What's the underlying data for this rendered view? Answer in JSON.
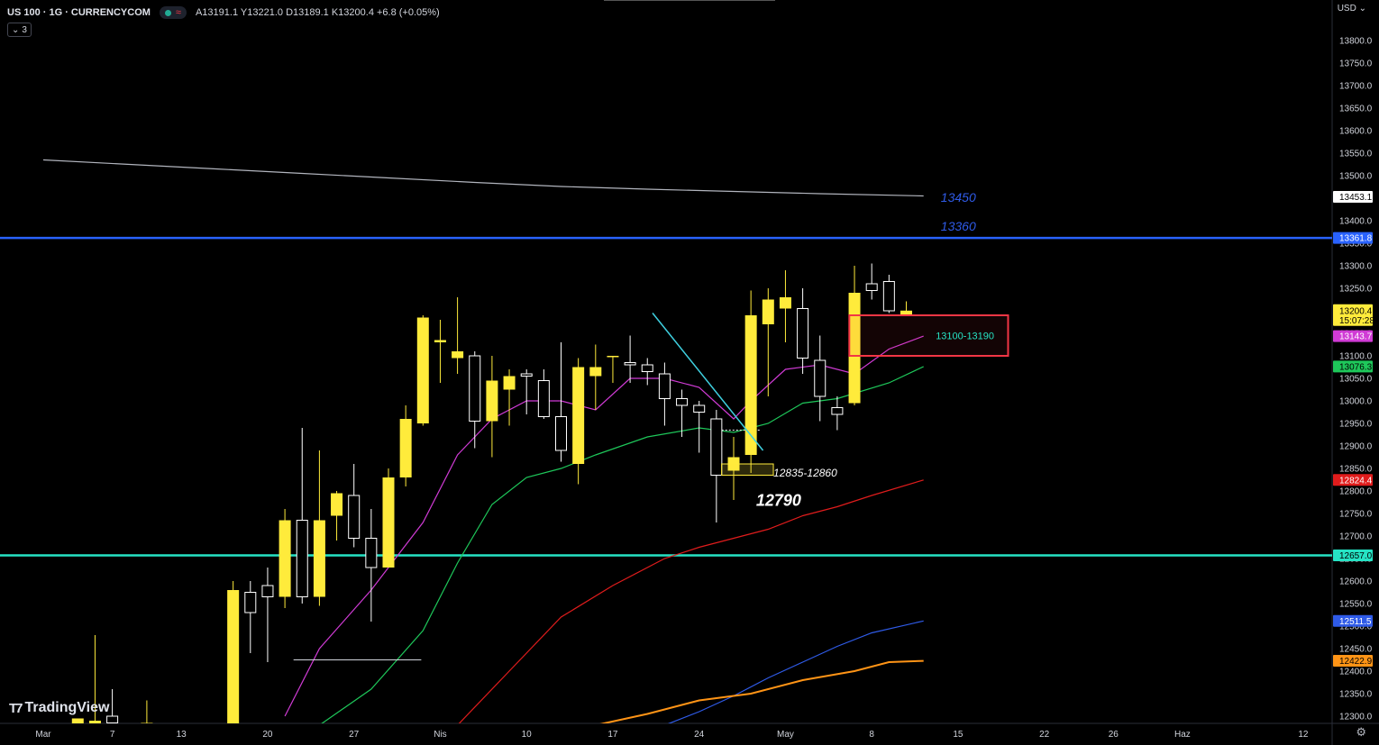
{
  "header": {
    "symbol": "US 100 · 1G · CURRENCYCOM",
    "ohlc": "A13191.1  Y13221.0  D13189.1  K13200.4  +6.8 (+0.05%)",
    "indicator_count": "3"
  },
  "branding": {
    "logo_text": "TradingView"
  },
  "currency": "USD",
  "colors": {
    "up": "#ffeb3b",
    "down": "#ffffff",
    "blue_line": "#2962ff",
    "teal_line": "#26e3c4",
    "magenta_ma": "#d03bd5",
    "green_ma": "#1ec75a",
    "red_ma": "#e01c1c",
    "blue_ma": "#2f5be8",
    "orange_ma": "#ff9416",
    "gray_ma": "#b2b5be"
  },
  "chart_data": {
    "type": "candlestick",
    "ylim": [
      12280,
      13860
    ],
    "yticks": [
      12300,
      12350,
      12400,
      12450,
      12500,
      12550,
      12600,
      12650,
      12700,
      12750,
      12800,
      12850,
      12900,
      12950,
      13000,
      13050,
      13100,
      13150,
      13200,
      13250,
      13300,
      13350,
      13400,
      13450,
      13500,
      13550,
      13600,
      13650,
      13700,
      13750,
      13800
    ],
    "xticks": [
      {
        "label": "Mar",
        "x": 0
      },
      {
        "label": "7",
        "x": 4
      },
      {
        "label": "13",
        "x": 8
      },
      {
        "label": "20",
        "x": 13
      },
      {
        "label": "27",
        "x": 18
      },
      {
        "label": "Nis",
        "x": 23
      },
      {
        "label": "10",
        "x": 28
      },
      {
        "label": "17",
        "x": 33
      },
      {
        "label": "24",
        "x": 38
      },
      {
        "label": "May",
        "x": 43
      },
      {
        "label": "8",
        "x": 48
      },
      {
        "label": "15",
        "x": 53
      },
      {
        "label": "22",
        "x": 58
      },
      {
        "label": "26",
        "x": 62
      },
      {
        "label": "Haz",
        "x": 66
      },
      {
        "label": "12",
        "x": 73
      }
    ],
    "candles": [
      {
        "x": 2,
        "o": 12275,
        "h": 12280,
        "l": 12270,
        "c": 12295
      },
      {
        "x": 3,
        "o": 12270,
        "h": 12480,
        "l": 12260,
        "c": 12290
      },
      {
        "x": 4,
        "o": 12300,
        "h": 12360,
        "l": 12260,
        "c": 12285
      },
      {
        "x": 6,
        "o": 12280,
        "h": 12335,
        "l": 12250,
        "c": 12285
      },
      {
        "x": 11,
        "o": 12270,
        "h": 12600,
        "l": 12250,
        "c": 12580
      },
      {
        "x": 12,
        "o": 12575,
        "h": 12600,
        "l": 12440,
        "c": 12530
      },
      {
        "x": 13,
        "o": 12590,
        "h": 12630,
        "l": 12420,
        "c": 12565
      },
      {
        "x": 14,
        "o": 12565,
        "h": 12760,
        "l": 12540,
        "c": 12735
      },
      {
        "x": 15,
        "o": 12735,
        "h": 12940,
        "l": 12550,
        "c": 12565
      },
      {
        "x": 16,
        "o": 12565,
        "h": 12890,
        "l": 12545,
        "c": 12735
      },
      {
        "x": 17,
        "o": 12745,
        "h": 12800,
        "l": 12690,
        "c": 12795
      },
      {
        "x": 18,
        "o": 12790,
        "h": 12860,
        "l": 12675,
        "c": 12695
      },
      {
        "x": 19,
        "o": 12695,
        "h": 12760,
        "l": 12510,
        "c": 12630
      },
      {
        "x": 20,
        "o": 12630,
        "h": 12850,
        "l": 12630,
        "c": 12830
      },
      {
        "x": 21,
        "o": 12830,
        "h": 12990,
        "l": 12810,
        "c": 12960
      },
      {
        "x": 22,
        "o": 12950,
        "h": 13190,
        "l": 12945,
        "c": 13185
      },
      {
        "x": 23,
        "o": 13130,
        "h": 13180,
        "l": 13040,
        "c": 13135
      },
      {
        "x": 24,
        "o": 13095,
        "h": 13230,
        "l": 13060,
        "c": 13110
      },
      {
        "x": 25,
        "o": 13100,
        "h": 13110,
        "l": 12895,
        "c": 12955
      },
      {
        "x": 26,
        "o": 12955,
        "h": 13100,
        "l": 12875,
        "c": 13045
      },
      {
        "x": 27,
        "o": 13025,
        "h": 13070,
        "l": 12945,
        "c": 13055
      },
      {
        "x": 28,
        "o": 13060,
        "h": 13070,
        "l": 12970,
        "c": 13055
      },
      {
        "x": 29,
        "o": 13045,
        "h": 13070,
        "l": 12960,
        "c": 12965
      },
      {
        "x": 30,
        "o": 12965,
        "h": 13130,
        "l": 12865,
        "c": 12890
      },
      {
        "x": 31,
        "o": 12860,
        "h": 13095,
        "l": 12815,
        "c": 13075
      },
      {
        "x": 32,
        "o": 13055,
        "h": 13125,
        "l": 12980,
        "c": 13075
      },
      {
        "x": 33,
        "o": 13100,
        "h": 13100,
        "l": 13040,
        "c": 13100
      },
      {
        "x": 34,
        "o": 13085,
        "h": 13145,
        "l": 13040,
        "c": 13080
      },
      {
        "x": 35,
        "o": 13080,
        "h": 13095,
        "l": 13035,
        "c": 13065
      },
      {
        "x": 36,
        "o": 13060,
        "h": 13085,
        "l": 12945,
        "c": 13005
      },
      {
        "x": 37,
        "o": 13005,
        "h": 13025,
        "l": 12920,
        "c": 12990
      },
      {
        "x": 38,
        "o": 12990,
        "h": 13000,
        "l": 12885,
        "c": 12975
      },
      {
        "x": 39,
        "o": 12960,
        "h": 12980,
        "l": 12730,
        "c": 12835
      },
      {
        "x": 40,
        "o": 12845,
        "h": 12920,
        "l": 12780,
        "c": 12875
      },
      {
        "x": 41,
        "o": 12880,
        "h": 13245,
        "l": 12840,
        "c": 13190
      },
      {
        "x": 42,
        "o": 13170,
        "h": 13250,
        "l": 13010,
        "c": 13225
      },
      {
        "x": 43,
        "o": 13205,
        "h": 13290,
        "l": 13130,
        "c": 13230
      },
      {
        "x": 44,
        "o": 13205,
        "h": 13250,
        "l": 13060,
        "c": 13095
      },
      {
        "x": 45,
        "o": 13090,
        "h": 13145,
        "l": 12955,
        "c": 13010
      },
      {
        "x": 46,
        "o": 12985,
        "h": 13010,
        "l": 12935,
        "c": 12970
      },
      {
        "x": 47,
        "o": 12995,
        "h": 13300,
        "l": 12990,
        "c": 13240
      },
      {
        "x": 48,
        "o": 13260,
        "h": 13305,
        "l": 13225,
        "c": 13245
      },
      {
        "x": 49,
        "o": 13265,
        "h": 13280,
        "l": 13195,
        "c": 13200
      },
      {
        "x": 50,
        "o": 13191.1,
        "h": 13221.0,
        "l": 13189.1,
        "c": 13200.4
      }
    ],
    "moving_averages": [
      {
        "name": "magenta",
        "points": [
          [
            14,
            12300
          ],
          [
            16,
            12450
          ],
          [
            19,
            12580
          ],
          [
            22,
            12730
          ],
          [
            24,
            12880
          ],
          [
            26,
            12960
          ],
          [
            28,
            13000
          ],
          [
            30,
            13000
          ],
          [
            32,
            12980
          ],
          [
            34,
            13050
          ],
          [
            36,
            13050
          ],
          [
            38,
            13030
          ],
          [
            40,
            12960
          ],
          [
            41,
            13000
          ],
          [
            43,
            13070
          ],
          [
            45,
            13080
          ],
          [
            47,
            13060
          ],
          [
            49,
            13115
          ],
          [
            51,
            13143.7
          ]
        ]
      },
      {
        "name": "green",
        "points": [
          [
            16,
            12280
          ],
          [
            19,
            12360
          ],
          [
            22,
            12490
          ],
          [
            24,
            12640
          ],
          [
            26,
            12770
          ],
          [
            28,
            12830
          ],
          [
            30,
            12850
          ],
          [
            32,
            12880
          ],
          [
            35,
            12920
          ],
          [
            38,
            12940
          ],
          [
            40,
            12930
          ],
          [
            42,
            12950
          ],
          [
            44,
            12995
          ],
          [
            46,
            13005
          ],
          [
            49,
            13040
          ],
          [
            51,
            13076.3
          ]
        ]
      },
      {
        "name": "red",
        "points": [
          [
            24,
            12280
          ],
          [
            27,
            12400
          ],
          [
            30,
            12520
          ],
          [
            33,
            12590
          ],
          [
            36,
            12650
          ],
          [
            38,
            12675
          ],
          [
            40,
            12695
          ],
          [
            42,
            12715
          ],
          [
            44,
            12745
          ],
          [
            46,
            12765
          ],
          [
            48,
            12790
          ],
          [
            51,
            12824.4
          ]
        ]
      },
      {
        "name": "blue",
        "points": [
          [
            36,
            12280
          ],
          [
            38,
            12310
          ],
          [
            40,
            12345
          ],
          [
            42,
            12385
          ],
          [
            44,
            12420
          ],
          [
            46,
            12455
          ],
          [
            48,
            12485
          ],
          [
            51,
            12511.5
          ]
        ]
      },
      {
        "name": "orange",
        "points": [
          [
            32,
            12280
          ],
          [
            35,
            12305
          ],
          [
            38,
            12335
          ],
          [
            41,
            12350
          ],
          [
            44,
            12380
          ],
          [
            47,
            12400
          ],
          [
            49,
            12420
          ],
          [
            51,
            12422.9
          ]
        ]
      },
      {
        "name": "gray",
        "points": [
          [
            0,
            13535
          ],
          [
            5,
            13525
          ],
          [
            10,
            13515
          ],
          [
            15,
            13505
          ],
          [
            20,
            13495
          ],
          [
            25,
            13485
          ],
          [
            30,
            13476
          ],
          [
            35,
            13470
          ],
          [
            40,
            13465
          ],
          [
            45,
            13460
          ],
          [
            51,
            13455
          ]
        ]
      }
    ],
    "price_labels": [
      {
        "value": 13453.1,
        "bg": "#ffffff",
        "fg": "#000000"
      },
      {
        "value": 13361.8,
        "bg": "#2962ff",
        "fg": "#ffffff"
      },
      {
        "value": "13200.4",
        "value2": "15:07:28",
        "bg": "#ffeb3b",
        "fg": "#000000",
        "price": 13200.4
      },
      {
        "value": 13143.7,
        "bg": "#d03bd5",
        "fg": "#ffffff"
      },
      {
        "value": 13076.3,
        "bg": "#1ec75a",
        "fg": "#000000"
      },
      {
        "value": 12824.4,
        "bg": "#e01c1c",
        "fg": "#ffffff"
      },
      {
        "value": 12657.0,
        "bg": "#26e3c4",
        "fg": "#000000"
      },
      {
        "value": 12511.5,
        "bg": "#2f5be8",
        "fg": "#ffffff"
      },
      {
        "value": 12422.9,
        "bg": "#ff9416",
        "fg": "#000000"
      }
    ],
    "horizontal_lines": [
      {
        "price": 13361.8,
        "color": "#2962ff"
      },
      {
        "price": 12657.0,
        "color": "#26e3c4"
      }
    ],
    "annotations": [
      {
        "text": "13450",
        "x": 52,
        "price": 13450,
        "color": "#2f5be8"
      },
      {
        "text": "13360",
        "x": 52,
        "price": 13386,
        "color": "#2f5be8"
      },
      {
        "text": "12835-12860",
        "x": 42.3,
        "price": 12840,
        "color": "#ffffff"
      },
      {
        "text": "12790",
        "x": 41.3,
        "price": 12775,
        "color": "#ffffff"
      },
      {
        "text": "13100-13190",
        "x": 53.4,
        "price": 13145,
        "color": "#26e3c4"
      }
    ],
    "zone_box": {
      "x0": 46.7,
      "x1": 55.9,
      "p0": 13190,
      "p1": 13100,
      "color": "#f23645"
    },
    "small_box": {
      "x0": 39.3,
      "x1": 42.3,
      "p0": 12860,
      "p1": 12835,
      "color": "#ffeb3b"
    },
    "trend_line": {
      "x0": 35.3,
      "p0": 13195,
      "x1": 41.7,
      "p1": 12890,
      "color": "#3fd0e0"
    },
    "support_line": {
      "x0": 14.5,
      "x1": 21.9,
      "price": 12425,
      "color": "#d1d4dc"
    },
    "dotted_line": {
      "x0": 39.1,
      "x1": 41.5,
      "price": 12935,
      "color": "#d1d4dc"
    }
  }
}
